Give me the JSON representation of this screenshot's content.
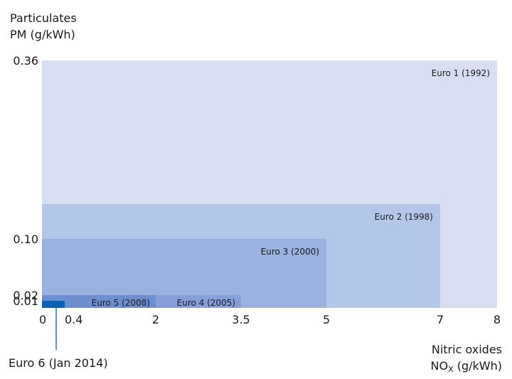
{
  "chart_data": {
    "type": "bar",
    "ylabel_line1": "Particulates",
    "ylabel_line2": "PM (g/kWh)",
    "xlabel_line1": "Nitric oxides",
    "xlabel_prefix": "NO",
    "xlabel_sub": "X",
    "xlabel_suffix": " (g/kWh)",
    "xlim": [
      0,
      8
    ],
    "x_ticks": [
      {
        "value": 0,
        "label": "0"
      },
      {
        "value": 0.4,
        "label": "0.4"
      },
      {
        "value": 2,
        "label": "2"
      },
      {
        "value": 3.5,
        "label": "3.5"
      },
      {
        "value": 5,
        "label": "5"
      },
      {
        "value": 7,
        "label": "7"
      },
      {
        "value": 8,
        "label": "8"
      }
    ],
    "y_ticks": [
      {
        "value": 0.01,
        "label": "0.01"
      },
      {
        "value": 0.02,
        "label": "0.02"
      },
      {
        "value": 0.1,
        "label": "0.10"
      },
      {
        "value": 0.36,
        "label": "0.36"
      }
    ],
    "standards": [
      {
        "name": "Euro 1 (1992)",
        "nox": 8,
        "pm": 0.36,
        "color": "#d8dff2"
      },
      {
        "name": "Euro 2 (1998)",
        "nox": 7,
        "pm": 0.15,
        "color": "#b5c7e9"
      },
      {
        "name": "Euro 3 (2000)",
        "nox": 5,
        "pm": 0.1,
        "color": "#9bb2e0"
      },
      {
        "name": "Euro 4 (2005)",
        "nox": 3.5,
        "pm": 0.02,
        "color": "#85a0d8"
      },
      {
        "name": "Euro 5 (2008)",
        "nox": 2,
        "pm": 0.02,
        "color": "#6d8fd0"
      },
      {
        "name": "Euro 6 (Jan 2014)",
        "nox": 0.4,
        "pm": 0.01,
        "color": "#0a61b5"
      }
    ]
  }
}
